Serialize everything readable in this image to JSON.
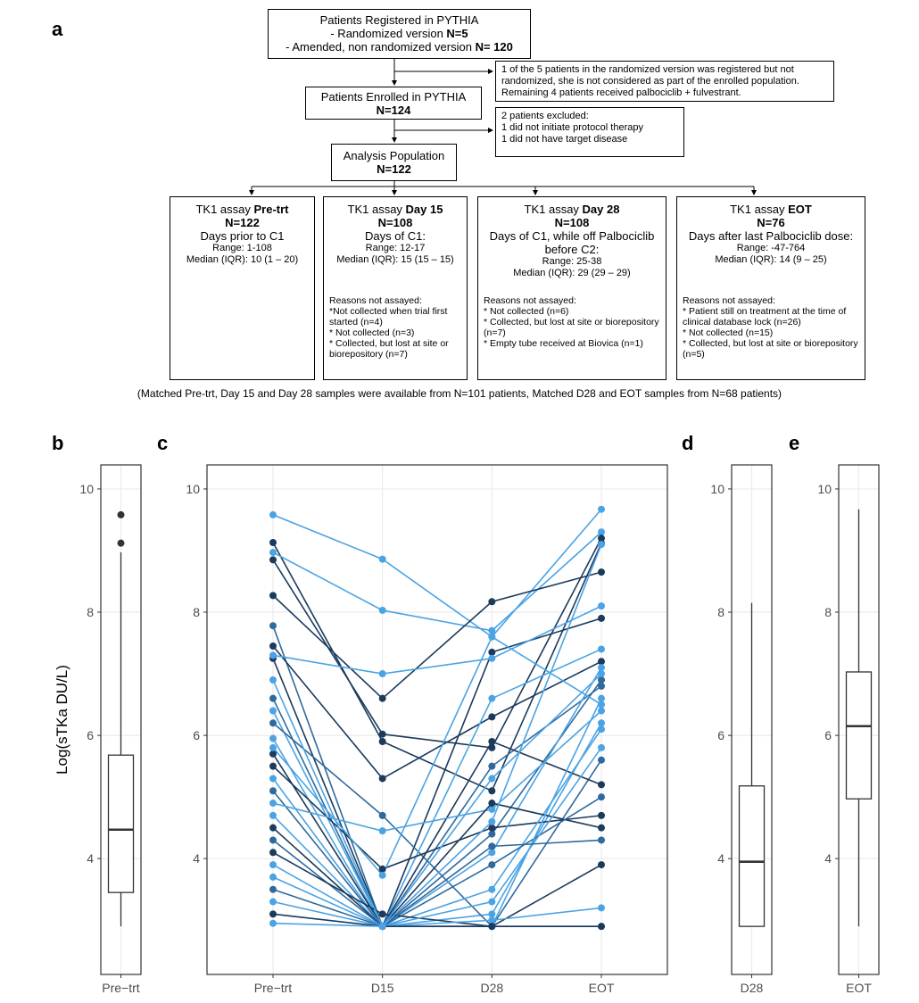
{
  "panel_labels": [
    "a",
    "b",
    "c",
    "d",
    "e"
  ],
  "flow": {
    "registered": {
      "title": "Patients Registered in PYTHIA",
      "line1": "- Randomized version ",
      "n1": "N=5",
      "line2": "- Amended, non randomized version ",
      "n2": "N= 120"
    },
    "note1": "1 of the 5 patients in the randomized version was registered but not randomized, she is not considered as part of the enrolled population. Remaining 4 patients received palbociclib + fulvestrant.",
    "enrolled": {
      "title": "Patients Enrolled in PYTHIA",
      "n": "N=124"
    },
    "note2": [
      "2 patients excluded:",
      "1 did not initiate protocol therapy",
      "1 did not have target disease"
    ],
    "analysis": {
      "title": "Analysis Population",
      "n": "N=122"
    },
    "assays": [
      {
        "label": "TK1 assay ",
        "bold": "Pre-trt",
        "n": "N=122",
        "days": "Days prior to C1",
        "range": "Range: 1-108",
        "median": "Median (IQR): 10 (1 – 20)"
      },
      {
        "label": "TK1 assay ",
        "bold": "Day 15",
        "n": "N=108",
        "days": "Days of C1:",
        "range": "Range: 12-17",
        "median": "Median (IQR): 15 (15 – 15)",
        "reasons": {
          "title": "Reasons not assayed:",
          "items": [
            "*Not collected when trial first started (n=4)",
            "* Not collected (n=3)",
            "* Collected, but lost at site or biorepository (n=7)"
          ]
        }
      },
      {
        "label": "TK1 assay ",
        "bold": "Day 28",
        "n": "N=108",
        "days": "Days of C1, while off Palbociclib before C2:",
        "range": "Range: 25-38",
        "median": "Median (IQR): 29 (29 – 29)",
        "reasons": {
          "title": "Reasons not assayed:",
          "items": [
            "* Not collected (n=6)",
            "* Collected, but lost at site or biorepository  (n=7)",
            "* Empty tube received at Biovica (n=1)"
          ]
        }
      },
      {
        "label": "TK1 assay ",
        "bold": "EOT",
        "n": "N=76",
        "days": "Days after last Palbociclib dose:",
        "range": "Range:  -47-764",
        "median": "Median (IQR): 14 (9 – 25)",
        "reasons": {
          "title": "Reasons not assayed:",
          "items": [
            "* Patient still on treatment at the time of clinical database lock (n=26)",
            "* Not collected (n=15)",
            "* Collected, but lost at site or biorepository (n=5)"
          ]
        }
      }
    ],
    "footnote": "(Matched Pre-trt, Day 15 and Day 28 samples were available from N=101 patients, Matched D28 and EOT samples from N=68 patients)"
  },
  "chart_data": [
    {
      "type": "box",
      "y_label": "Log(sTKa DU/L)",
      "categories": [
        "Pre−trt"
      ],
      "color": "#333333",
      "stats": {
        "min": 2.9,
        "q1": 3.45,
        "median": 4.47,
        "q3": 5.68,
        "max": 8.97,
        "outliers": [
          9.12,
          9.58
        ]
      },
      "ylim": [
        2.12,
        10.39
      ],
      "yticks": [
        4,
        6,
        8,
        10
      ],
      "grid": true
    },
    {
      "type": "line",
      "categories": [
        "Pre−trt",
        "D15",
        "D28",
        "EOT"
      ],
      "ylim": [
        2.12,
        10.39
      ],
      "yticks": [
        4,
        6,
        8,
        10
      ],
      "grid": true,
      "series": [
        {
          "color": "#4ba3e3",
          "values": [
            9.58,
            8.86,
            7.6,
            9.67
          ]
        },
        {
          "color": "#1b3a5c",
          "values": [
            9.13,
            5.9,
            5.1,
            9.12
          ]
        },
        {
          "color": "#4ba3e3",
          "values": [
            8.97,
            8.03,
            7.7,
            9.3
          ]
        },
        {
          "color": "#1b3a5c",
          "values": [
            8.85,
            6.02,
            5.8,
            9.2
          ]
        },
        {
          "color": "#1b3a5c",
          "values": [
            8.27,
            6.6,
            8.17,
            8.65
          ]
        },
        {
          "color": "#2e6a9e",
          "values": [
            7.78,
            2.9,
            4.4,
            6.9
          ]
        },
        {
          "color": "#1b3a5c",
          "values": [
            7.45,
            5.3,
            6.3,
            7.2
          ]
        },
        {
          "color": "#1b3a5c",
          "values": [
            7.25,
            2.9,
            7.35,
            7.9
          ]
        },
        {
          "color": "#4ba3e3",
          "values": [
            7.3,
            7.0,
            7.25,
            8.1
          ]
        },
        {
          "color": "#2e6a9e",
          "values": [
            6.6,
            2.9,
            5.5,
            6.8
          ]
        },
        {
          "color": "#4ba3e3",
          "values": [
            6.4,
            2.9,
            3.1,
            6.2
          ]
        },
        {
          "color": "#2e6a9e",
          "values": [
            6.2,
            4.7,
            2.9,
            5.6
          ]
        },
        {
          "color": "#4ba3e3",
          "values": [
            5.95,
            2.9,
            6.6,
            7.4
          ]
        },
        {
          "color": "#1b3a5c",
          "values": [
            5.7,
            2.9,
            5.9,
            5.2
          ]
        },
        {
          "color": "#1b3a5c",
          "values": [
            5.5,
            3.83,
            4.5,
            4.7
          ]
        },
        {
          "color": "#4ba3e3",
          "values": [
            5.3,
            2.9,
            4.1,
            7.1
          ]
        },
        {
          "color": "#2e6a9e",
          "values": [
            5.1,
            2.9,
            2.9,
            2.9
          ]
        },
        {
          "color": "#4ba3e3",
          "values": [
            4.9,
            4.45,
            4.8,
            6.4
          ]
        },
        {
          "color": "#4ba3e3",
          "values": [
            4.7,
            2.9,
            3.5,
            6.1
          ]
        },
        {
          "color": "#1b3a5c",
          "values": [
            4.5,
            2.9,
            4.9,
            4.5
          ]
        },
        {
          "color": "#2e6a9e",
          "values": [
            4.3,
            2.9,
            3.9,
            5.0
          ]
        },
        {
          "color": "#1b3a5c",
          "values": [
            4.1,
            3.1,
            2.9,
            3.9
          ]
        },
        {
          "color": "#4ba3e3",
          "values": [
            3.9,
            2.9,
            3.3,
            5.8
          ]
        },
        {
          "color": "#4ba3e3",
          "values": [
            3.7,
            2.9,
            2.9,
            6.6
          ]
        },
        {
          "color": "#2e6a9e",
          "values": [
            3.5,
            2.9,
            4.2,
            4.3
          ]
        },
        {
          "color": "#4ba3e3",
          "values": [
            3.3,
            2.9,
            3.0,
            3.2
          ]
        },
        {
          "color": "#1b3a5c",
          "values": [
            3.1,
            2.9,
            2.9,
            2.9
          ]
        },
        {
          "color": "#4ba3e3",
          "values": [
            2.95,
            2.9,
            5.3,
            7.0
          ]
        },
        {
          "color": "#4ba3e3",
          "values": [
            6.9,
            2.9,
            4.6,
            9.1
          ]
        },
        {
          "color": "#4ba3e3",
          "values": [
            5.8,
            3.73,
            7.6,
            6.5
          ]
        }
      ]
    },
    {
      "type": "box",
      "categories": [
        "D28"
      ],
      "color": "#333333",
      "stats": {
        "min": 2.9,
        "q1": 2.9,
        "median": 3.95,
        "q3": 5.18,
        "max": 8.15,
        "outliers": []
      },
      "ylim": [
        2.12,
        10.39
      ],
      "yticks": [
        4,
        6,
        8,
        10
      ],
      "grid": true
    },
    {
      "type": "box",
      "categories": [
        "EOT"
      ],
      "color": "#333333",
      "stats": {
        "min": 2.9,
        "q1": 4.97,
        "median": 6.15,
        "q3": 7.03,
        "max": 9.67,
        "outliers": []
      },
      "ylim": [
        2.12,
        10.39
      ],
      "yticks": [
        4,
        6,
        8,
        10
      ],
      "grid": true
    }
  ]
}
